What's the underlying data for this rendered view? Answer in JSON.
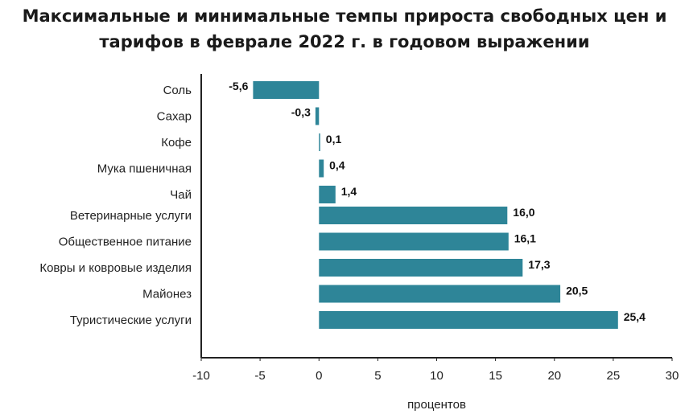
{
  "chart_data": {
    "type": "bar",
    "orientation": "horizontal",
    "title_line1": "Максимальные и минимальные темпы прироста свободных цен и",
    "title_line2": "тарифов в феврале 2022 г. в годовом выражении",
    "xlabel": "процентов",
    "ylabel": "",
    "xlim": [
      -10,
      30
    ],
    "xticks": [
      -10,
      -5,
      0,
      5,
      10,
      15,
      20,
      25,
      30
    ],
    "xtick_labels": [
      "-10",
      "-5",
      "0",
      "5",
      "10",
      "15",
      "20",
      "25",
      "30"
    ],
    "grid": false,
    "groups": [
      {
        "categories": [
          "Соль",
          "Сахар",
          "Кофе",
          "Мука пшеничная",
          "Чай"
        ],
        "values": [
          -5.6,
          -0.3,
          0.1,
          0.4,
          1.4
        ],
        "value_labels": [
          "-5,6",
          "-0,3",
          "0,1",
          "0,4",
          "1,4"
        ]
      },
      {
        "categories": [
          "Ветеринарные услуги",
          "Общественное питание",
          "Ковры и ковровые изделия",
          "Майонез",
          "Туристические услуги"
        ],
        "values": [
          16.0,
          16.1,
          17.3,
          20.5,
          25.4
        ],
        "value_labels": [
          "16,0",
          "16,1",
          "17,3",
          "20,5",
          "25,4"
        ]
      }
    ],
    "bar_color": "#2e8598"
  }
}
